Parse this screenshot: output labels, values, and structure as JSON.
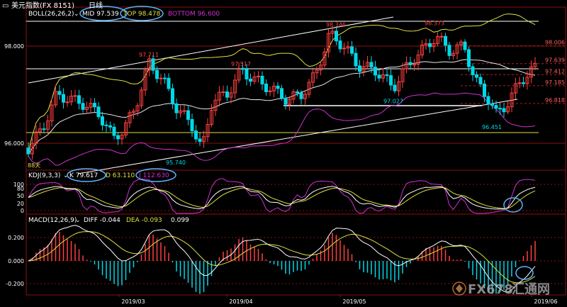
{
  "header": {
    "symbol": "美元指数(FX 8151)",
    "period": "日线"
  },
  "boll": {
    "label": "BOLL(26,26,2)",
    "mid": "MID 97.539",
    "top": "TOP 98.478",
    "bottom": "BOTTOM 96.600"
  },
  "kdj": {
    "label": "KDJ(9,3,3)",
    "k": "K 79.617",
    "d": "D 63.110",
    "j": "J 112.630"
  },
  "macd": {
    "label": "MACD(12,26,9)",
    "diff": "DIFF -0.044",
    "dea": "DEA -0.093",
    "macd": "0.099"
  },
  "colors": {
    "up": "#ff4040",
    "down": "#00d8e8",
    "mid": "#e8e8e8",
    "top": "#e0e040",
    "bottom": "#d030d0",
    "k": "#ffffff",
    "d": "#e0e040",
    "j": "#d030d0",
    "annotation": "#5ab4ff",
    "frame": "#8b1010",
    "watermark": "#d08a40"
  },
  "chart_data": [
    {
      "type": "candlestick",
      "title": "BOLL(26,26,2)",
      "y_ticks": [
        "98.000",
        "96.000"
      ],
      "ylim": [
        95.4,
        99.0
      ],
      "peak_labels": [
        {
          "label": "97.711",
          "value": 97.711
        },
        {
          "label": "95.740",
          "value": 95.74
        },
        {
          "label": "97.517",
          "value": 97.517
        },
        {
          "label": "98.346",
          "value": 98.346
        },
        {
          "label": "97.027",
          "value": 97.027
        },
        {
          "label": "98.373",
          "value": 98.373
        },
        {
          "label": "96.451",
          "value": 96.451
        }
      ],
      "level_lines": [
        {
          "label": "98.006",
          "value": 98.006
        },
        {
          "label": "97.639",
          "value": 97.639
        },
        {
          "label": "97.412",
          "value": 97.412
        },
        {
          "label": "97.185",
          "value": 97.185
        },
        {
          "label": "96.818",
          "value": 96.818
        }
      ],
      "corner_label": "88天"
    },
    {
      "type": "line",
      "title": "KDJ(9,3,3)",
      "y_ticks": [
        "100",
        "80",
        "50",
        "20",
        "0"
      ],
      "ylim": [
        -10,
        120
      ],
      "series": [
        {
          "name": "K",
          "last": 79.617
        },
        {
          "name": "D",
          "last": 63.11
        },
        {
          "name": "J",
          "last": 112.63
        }
      ]
    },
    {
      "type": "bar",
      "title": "MACD(12,26,9)",
      "y_ticks": [
        "0.200",
        "0.000",
        "-0.200"
      ],
      "ylim": [
        -0.32,
        0.32
      ],
      "series": [
        {
          "name": "DIFF",
          "last": -0.044
        },
        {
          "name": "DEA",
          "last": -0.093
        },
        {
          "name": "MACD",
          "last": 0.099
        }
      ]
    }
  ],
  "x_axis": {
    "labels": [
      "2019/03",
      "2019/04",
      "2019/05",
      "2019/06"
    ]
  },
  "watermark": {
    "brand": "FX678",
    "cn": "汇通网"
  }
}
